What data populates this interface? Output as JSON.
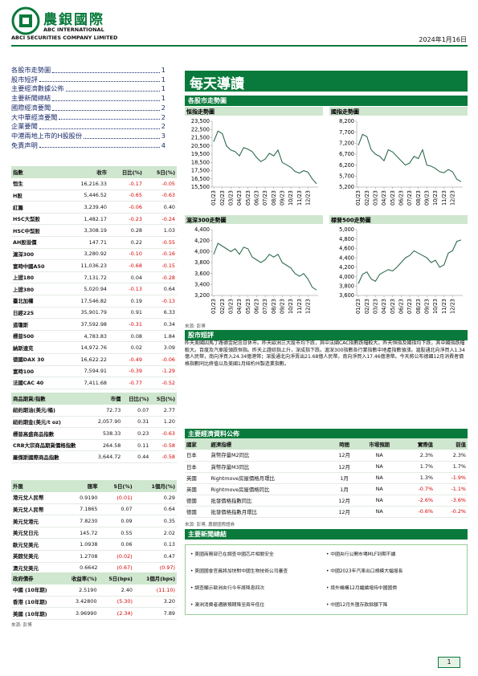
{
  "header": {
    "company_cn": "農銀國際",
    "company_en1": "ABC INTERNATIONAL",
    "company_en2": "ABCI SECURITIES COMPANY LIMITED",
    "date": "2024年1月16日"
  },
  "toc": [
    {
      "title": "各股市走勢圖",
      "page": "1"
    },
    {
      "title": "股市短評",
      "page": "1"
    },
    {
      "title": "主要經濟數據公佈",
      "page": "1"
    },
    {
      "title": "主要新聞總結",
      "page": "1"
    },
    {
      "title": "國際經濟要聞",
      "page": "2"
    },
    {
      "title": "大中華經濟要聞",
      "page": "2"
    },
    {
      "title": "企業要聞",
      "page": "2"
    },
    {
      "title": "中港兩地上市的H股股份",
      "page": "3"
    },
    {
      "title": "免責声明",
      "page": "4"
    }
  ],
  "market_table": {
    "columns": [
      "指數",
      "收市",
      "日比(%)",
      "5日(%)"
    ],
    "rows": [
      [
        "恒生",
        "16,216.33",
        "-0.17",
        "-0.05"
      ],
      [
        "H股",
        "5,446.52",
        "-0.65",
        "-0.63"
      ],
      [
        "紅籌",
        "3,239.40",
        "-0.06",
        "0.40"
      ],
      [
        "HSC大型股",
        "1,482.17",
        "-0.23",
        "-0.24"
      ],
      [
        "HSC中型股",
        "3,308.19",
        "0.28",
        "1.03"
      ],
      [
        "AH股溢價",
        "147.71",
        "0.22",
        "-0.55"
      ],
      [
        "滬深300",
        "3,280.92",
        "-0.10",
        "-0.16"
      ],
      [
        "富時中國A50",
        "11,036.23",
        "-0.68",
        "-0.15"
      ],
      [
        "上證180",
        "7,131.72",
        "0.04",
        "-0.28"
      ],
      [
        "上證380",
        "5,020.94",
        "-0.13",
        "0.64"
      ],
      [
        "臺北加權",
        "17,546.82",
        "0.19",
        "-0.13"
      ],
      [
        "日經225",
        "35,901.79",
        "0.91",
        "6.33"
      ],
      [
        "道瓊斯",
        "37,592.98",
        "-0.31",
        "0.34"
      ],
      [
        "標普500",
        "4,783.83",
        "0.08",
        "1.84"
      ],
      [
        "納斯達克",
        "14,972.76",
        "0.02",
        "3.09"
      ],
      [
        "德國DAX 30",
        "16,622.22",
        "-0.49",
        "-0.06"
      ],
      [
        "富時100",
        "7,594.91",
        "-0.39",
        "-1.29"
      ],
      [
        "法國CAC 40",
        "7,411.68",
        "-0.77",
        "-0.52"
      ]
    ]
  },
  "commodity_table": {
    "columns": [
      "商品期貨/指數",
      "市價",
      "日比(%)",
      "5日(%)"
    ],
    "rows": [
      [
        "紐約期油(美元/桶)",
        "72.73",
        "0.07",
        "2.77"
      ],
      [
        "紐約期金(美元/t oz)",
        "2,057.90",
        "0.31",
        "1.20"
      ],
      [
        "標普高盛商品指數",
        "538.33",
        "0.23",
        "-0.63"
      ],
      [
        "CRB大宗商品期貨價格指數",
        "264.58",
        "0.11",
        "-0.58"
      ],
      [
        "羅傑斯國際商品指數",
        "3,644.72",
        "0.44",
        "-0.58"
      ]
    ]
  },
  "fx_table": {
    "columns": [
      "外匯",
      "匯率",
      "5日(%)",
      "1個月(%)"
    ],
    "rows": [
      [
        "港元兌人民幣",
        "0.9190",
        "(0.01)",
        "0.29"
      ],
      [
        "美元兌人民幣",
        "7.1865",
        "0.07",
        "0.64"
      ],
      [
        "美元兌港元",
        "7.8230",
        "0.09",
        "0.35"
      ],
      [
        "美元兌日元",
        "145.72",
        "0.55",
        "2.02"
      ],
      [
        "歐元兌美元",
        "1.0938",
        "0.06",
        "0.13"
      ],
      [
        "英鎊兌美元",
        "1.2708",
        "(0.02)",
        "0.47"
      ],
      [
        "澳元兌美元",
        "0.6642",
        "(0.67)",
        "(0.97)"
      ]
    ]
  },
  "bond_table": {
    "columns": [
      "政府債券",
      "收益率(%)",
      "5日(bps)",
      "1個月(bps)"
    ],
    "rows": [
      [
        "中國 (10年期)",
        "2.5190",
        "2.40",
        "(11.10)"
      ],
      [
        "香港 (10年期)",
        "3.42800",
        "(5.30)",
        "3.20"
      ],
      [
        "美國 (10年期)",
        "3.96990",
        "(2.34)",
        "7.89"
      ]
    ]
  },
  "left_source": "來源: 彭博",
  "banner": "每天導讀",
  "charts_heading": "各股市走勢圖",
  "chart_data": [
    {
      "type": "line",
      "title": "恒指走勢圖",
      "color": "#2e6b4e",
      "categories": [
        "01/23",
        null,
        "02/23",
        null,
        "03/23",
        null,
        "04/23",
        null,
        "05/23",
        null,
        "06/23",
        null,
        "07/23",
        null,
        "08/23",
        null,
        "09/23",
        null,
        "10/23",
        null,
        "11/23",
        null,
        "12/23",
        null,
        null
      ],
      "values": [
        21000,
        22300,
        22000,
        20500,
        20000,
        19800,
        19300,
        20300,
        20100,
        19800,
        19100,
        18600,
        18900,
        19600,
        19300,
        20000,
        18500,
        18200,
        17900,
        17400,
        17200,
        17500,
        17300,
        16500,
        15900
      ],
      "ylim": [
        15500,
        23500
      ],
      "yticks": [
        {
          "value": 15500,
          "label": "15,500"
        },
        {
          "value": 16500,
          "label": "16,500"
        },
        {
          "value": 17500,
          "label": "17,500"
        },
        {
          "value": 18500,
          "label": "18,500"
        },
        {
          "value": 19500,
          "label": "19,500"
        },
        {
          "value": 20500,
          "label": "20,500"
        },
        {
          "value": 21500,
          "label": "21,500"
        },
        {
          "value": 22500,
          "label": "22,500"
        },
        {
          "value": 23500,
          "label": "23,500"
        }
      ]
    },
    {
      "type": "line",
      "title": "國指走勢圖",
      "color": "#2e6b4e",
      "categories": [
        "01/23",
        null,
        "02/23",
        null,
        "03/23",
        null,
        "04/23",
        null,
        "05/23",
        null,
        "06/23",
        null,
        "07/23",
        null,
        "08/23",
        null,
        "09/23",
        null,
        "10/23",
        null,
        "11/23",
        null,
        "12/23",
        null,
        null
      ],
      "values": [
        7100,
        7600,
        7500,
        6900,
        6700,
        6600,
        6400,
        6900,
        6800,
        6600,
        6400,
        6200,
        6300,
        6600,
        6500,
        6900,
        6200,
        6150,
        6050,
        5900,
        5850,
        6000,
        5900,
        5550,
        5450
      ],
      "ylim": [
        5200,
        8200
      ],
      "yticks": [
        {
          "value": 5200,
          "label": "5,200"
        },
        {
          "value": 5700,
          "label": "5,700"
        },
        {
          "value": 6200,
          "label": "6,200"
        },
        {
          "value": 6700,
          "label": "6,700"
        },
        {
          "value": 7200,
          "label": "7,200"
        },
        {
          "value": 7700,
          "label": "7,700"
        },
        {
          "value": 8200,
          "label": "8,200"
        }
      ]
    },
    {
      "type": "line",
      "title": "滬深300走勢圖",
      "color": "#2e6b4e",
      "categories": [
        "01/23",
        null,
        "02/23",
        null,
        "03/23",
        null,
        "04/23",
        null,
        "05/23",
        null,
        "06/23",
        null,
        "07/23",
        null,
        "08/23",
        null,
        "09/23",
        null,
        "10/23",
        null,
        "11/23",
        null,
        "12/23",
        null,
        null
      ],
      "values": [
        3950,
        4150,
        4100,
        4050,
        4000,
        4050,
        3950,
        4080,
        4050,
        3900,
        3850,
        3800,
        3850,
        3950,
        3900,
        3950,
        3800,
        3750,
        3700,
        3600,
        3550,
        3600,
        3500,
        3350,
        3300
      ],
      "ylim": [
        3200,
        4400
      ],
      "yticks": [
        {
          "value": 3200,
          "label": "3,200"
        },
        {
          "value": 3400,
          "label": "3,400"
        },
        {
          "value": 3600,
          "label": "3,600"
        },
        {
          "value": 3800,
          "label": "3,800"
        },
        {
          "value": 4000,
          "label": "4,000"
        },
        {
          "value": 4200,
          "label": "4,200"
        },
        {
          "value": 4400,
          "label": "4,400"
        }
      ]
    },
    {
      "type": "line",
      "title": "標普500走勢圖",
      "color": "#2e6b4e",
      "categories": [
        "01/23",
        null,
        "02/23",
        null,
        "03/23",
        null,
        "04/23",
        null,
        "05/23",
        null,
        "06/23",
        null,
        "07/23",
        null,
        "08/23",
        null,
        "09/23",
        null,
        "10/23",
        null,
        "11/23",
        null,
        "12/23",
        null,
        null
      ],
      "values": [
        3850,
        4050,
        4100,
        3950,
        3900,
        4050,
        4100,
        4150,
        4120,
        4200,
        4300,
        4400,
        4450,
        4550,
        4500,
        4450,
        4400,
        4300,
        4350,
        4200,
        4250,
        4500,
        4550,
        4750,
        4780
      ],
      "ylim": [
        3600,
        5000
      ],
      "yticks": [
        {
          "value": 3600,
          "label": "3,600"
        },
        {
          "value": 3800,
          "label": "3,800"
        },
        {
          "value": 4000,
          "label": "4,000"
        },
        {
          "value": 4200,
          "label": "4,200"
        },
        {
          "value": 4400,
          "label": "4,400"
        },
        {
          "value": 4600,
          "label": "4,600"
        },
        {
          "value": 4800,
          "label": "4,800"
        },
        {
          "value": 5000,
          "label": "5,000"
        }
      ]
    }
  ],
  "chart_source": "來源: 彭博",
  "commentary": {
    "heading": "股市短評",
    "text": "昨天美國因馬丁路德金紀念日休市。昨天歐洲三大股市均下跌，其中法國CAC指數跌幅較大。昨天恒指及國指均下跌，其中國指跌幅較大。百度及汽車股領跌恒指。昨天上證綜指上升，深成指下跌。滬深300指數各行業指數中地產指數領漲。滬股通北向淨買入1.34億人民幣，南向淨買入24.34億港幣；深股通北向淨賣出21.68億人民幣，南向淨買入17.46億港幣。今天將公布德國12月消費者價格指數同比終值以及美國1月紐約州製造業指數。"
  },
  "econ": {
    "heading": "主要經濟資料公佈",
    "columns": [
      "國家",
      "經濟指標",
      "時間",
      "市場預期",
      "實際值",
      "前值"
    ],
    "rows": [
      [
        "日本",
        "貨幣存量M2同比",
        "12月",
        "NA",
        "2.3%",
        "2.3%"
      ],
      [
        "日本",
        "貨幣存量M3同比",
        "12月",
        "NA",
        "1.7%",
        "1.7%"
      ],
      [
        "英國",
        "Rightmove房屋價格月環比",
        "1月",
        "NA",
        "1.3%",
        "-1.9%"
      ],
      [
        "英國",
        "Rightmove房屋價格同比",
        "1月",
        "NA",
        "-0.7%",
        "-1.1%"
      ],
      [
        "德國",
        "批發價格指數同比",
        "12月",
        "NA",
        "-2.6%",
        "-3.6%"
      ],
      [
        "德國",
        "批發價格指數月環比",
        "12月",
        "NA",
        "-0.6%",
        "-0.2%"
      ]
    ],
    "source": "來源: 彭博, 農銀國際證券"
  },
  "news": {
    "heading": "主要新聞總結",
    "left": [
      "美國商務部已在調查中國芯片相關安全",
      "美國國會官員將加快對中國生物技術公司審查",
      "調查顯示歐洲央行今年將降息四次",
      "澳洲消費者通脹預期降至兩年低位"
    ],
    "right": [
      "中國央行公開市場MLF到期不續",
      "中國2023年汽車出口規模大幅增長",
      "境外機構12月繼續增持中國國債",
      "中國12月外匯存款餘額下降"
    ]
  },
  "page_number": "1"
}
